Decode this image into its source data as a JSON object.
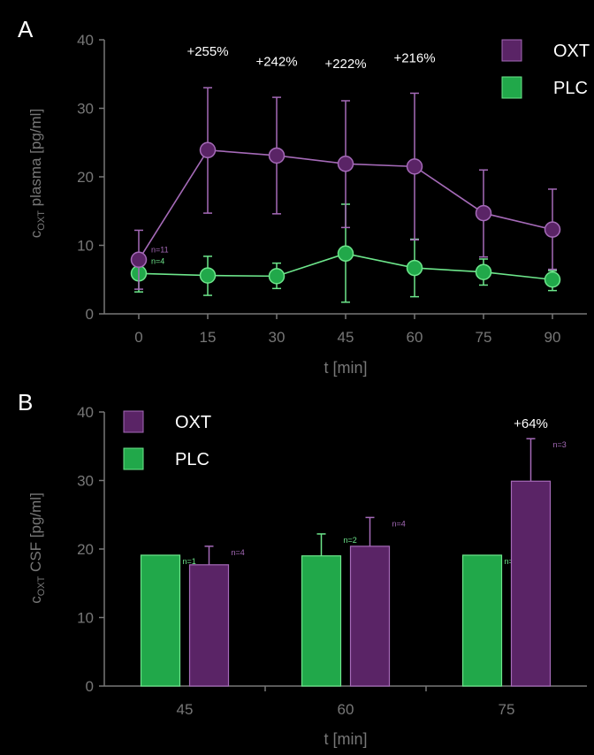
{
  "colors": {
    "background": "#000000",
    "axis": "#777777",
    "oxt_fill": "#5a2466",
    "oxt_line": "#a56ab8",
    "plc_fill": "#21a84a",
    "plc_line": "#6de68b",
    "text": "#ffffff"
  },
  "chart_data": [
    {
      "panel_label": "A",
      "type": "line",
      "xlabel": "t [min]",
      "ylabel_main": "c",
      "ylabel_sub": "OXT",
      "ylabel_rest": " plasma [pg/ml]",
      "xlim": [
        -7.5,
        97.5
      ],
      "ylim": [
        0,
        40
      ],
      "x": [
        0,
        15,
        30,
        45,
        60,
        75,
        90
      ],
      "x_tick_labels": [
        "0",
        "15",
        "30",
        "45",
        "60",
        "75",
        "90"
      ],
      "y_ticks": [
        0,
        10,
        20,
        30,
        40
      ],
      "legend": [
        "OXT",
        "PLC"
      ],
      "series": [
        {
          "name": "OXT",
          "values": [
            7.9,
            23.9,
            23.1,
            21.9,
            21.5,
            14.7,
            12.3
          ],
          "error_upper": [
            12.2,
            33.0,
            31.6,
            31.1,
            32.2,
            21.0,
            18.2
          ],
          "error_lower": [
            3.6,
            14.7,
            14.6,
            12.6,
            10.8,
            8.3,
            6.5
          ]
        },
        {
          "name": "PLC",
          "values": [
            5.9,
            5.6,
            5.5,
            8.8,
            6.7,
            6.1,
            5.0
          ],
          "error_upper": [
            8.7,
            8.4,
            7.4,
            16.0,
            10.9,
            8.0,
            6.3
          ],
          "error_lower": [
            3.2,
            2.7,
            3.7,
            1.7,
            2.5,
            4.2,
            3.4
          ]
        }
      ],
      "annotations": [
        {
          "text": "+255%",
          "x": 15,
          "y": 37.7
        },
        {
          "text": "+242%",
          "x": 30,
          "y": 36.2
        },
        {
          "text": "+222%",
          "x": 45,
          "y": 35.9
        },
        {
          "text": "+216%",
          "x": 60,
          "y": 36.7
        }
      ],
      "n_labels": [
        {
          "text": "n=11",
          "series": "OXT",
          "x": 0,
          "y": 9.0
        },
        {
          "text": "n=4",
          "series": "PLC",
          "x": 0,
          "y": 7.3
        }
      ]
    },
    {
      "panel_label": "B",
      "type": "bar",
      "xlabel": "t [min]",
      "ylabel_main": "c",
      "ylabel_sub": "OXT",
      "ylabel_rest": " CSF [pg/ml]",
      "ylim": [
        0,
        40
      ],
      "y_ticks": [
        0,
        10,
        20,
        30,
        40
      ],
      "categories": [
        "45",
        "60",
        "75"
      ],
      "legend": [
        "OXT",
        "PLC"
      ],
      "series": [
        {
          "name": "PLC",
          "values": [
            19.1,
            19.0,
            19.1
          ],
          "error_upper": [
            null,
            22.2,
            null
          ],
          "n": [
            "n=1",
            "n=2",
            "n=1"
          ]
        },
        {
          "name": "OXT",
          "values": [
            17.7,
            20.4,
            29.9
          ],
          "error_upper": [
            20.4,
            24.6,
            36.1
          ],
          "n": [
            "n=4",
            "n=4",
            "n=3"
          ]
        }
      ],
      "annotations": [
        {
          "text": "+64%",
          "category": "75",
          "y": 38.3
        }
      ]
    }
  ]
}
